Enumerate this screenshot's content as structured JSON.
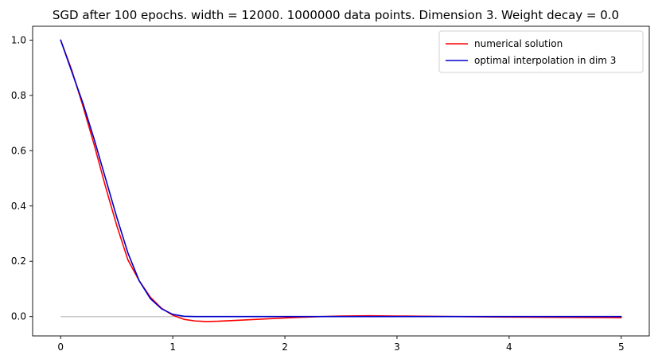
{
  "chart_data": {
    "type": "line",
    "title": "SGD after 100 epochs. width = 12000. 1000000 data points. Dimension 3. Weight decay = 0.0",
    "xlabel": "",
    "ylabel": "",
    "xlim": [
      -0.25,
      5.25
    ],
    "ylim": [
      -0.07,
      1.05
    ],
    "x_ticks": [
      0,
      1,
      2,
      3,
      4,
      5
    ],
    "x_tick_labels": [
      "0",
      "1",
      "2",
      "3",
      "4",
      "5"
    ],
    "y_ticks": [
      0.0,
      0.2,
      0.4,
      0.6,
      0.8,
      1.0
    ],
    "y_tick_labels": [
      "0.0",
      "0.2",
      "0.4",
      "0.6",
      "0.8",
      "1.0"
    ],
    "grid": false,
    "legend_position": "top-right",
    "baseline": {
      "y": 0,
      "x_range": [
        0,
        5
      ],
      "color": "#c8c8c8"
    },
    "series": [
      {
        "name": "numerical solution",
        "color": "#ff0000",
        "x": [
          0,
          0.1,
          0.2,
          0.3,
          0.4,
          0.5,
          0.6,
          0.7,
          0.8,
          0.9,
          1.0,
          1.1,
          1.2,
          1.3,
          1.4,
          1.5,
          1.75,
          2.0,
          2.25,
          2.5,
          2.75,
          3.0,
          3.5,
          4.0,
          4.5,
          5.0
        ],
        "y": [
          1.0,
          0.89,
          0.76,
          0.62,
          0.47,
          0.33,
          0.205,
          0.13,
          0.07,
          0.03,
          0.005,
          -0.01,
          -0.016,
          -0.018,
          -0.017,
          -0.015,
          -0.01,
          -0.005,
          -0.001,
          0.002,
          0.003,
          0.002,
          0.0,
          -0.002,
          -0.003,
          -0.004
        ]
      },
      {
        "name": "optimal interpolation in dim 3",
        "color": "#0000cc",
        "x": [
          0,
          0.1,
          0.2,
          0.3,
          0.4,
          0.5,
          0.6,
          0.7,
          0.8,
          0.9,
          1.0,
          1.1,
          1.2,
          1.5,
          2.0,
          2.5,
          3.0,
          3.5,
          4.0,
          4.5,
          5.0
        ],
        "y": [
          1.0,
          0.885,
          0.77,
          0.64,
          0.5,
          0.36,
          0.23,
          0.13,
          0.065,
          0.028,
          0.008,
          0.001,
          0.0,
          0.0,
          0.0,
          0.0,
          0.0,
          0.0,
          0.0,
          0.0,
          0.0
        ]
      }
    ]
  }
}
